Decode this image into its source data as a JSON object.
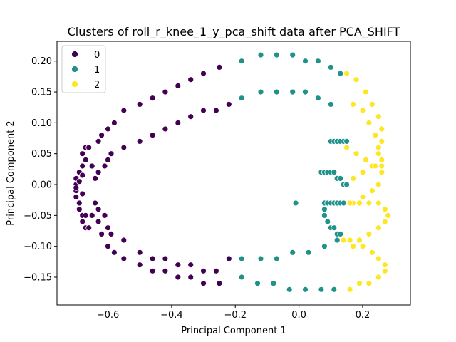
{
  "chart_data": {
    "type": "scatter",
    "title": "Clusters of roll_r_knee_1_y_pca_shift data after PCA_SHIFT",
    "xlabel": "Principal Component 1",
    "ylabel": "Principal Component 2",
    "xlim": [
      -0.76,
      0.35
    ],
    "ylim": [
      -0.195,
      0.232
    ],
    "xticks": [
      -0.6,
      -0.4,
      -0.2,
      0.0,
      0.2
    ],
    "xtick_labels": [
      "−0.6",
      "−0.4",
      "−0.2",
      "0.0",
      "0.2"
    ],
    "yticks": [
      -0.15,
      -0.1,
      -0.05,
      0.0,
      0.05,
      0.1,
      0.15,
      0.2
    ],
    "ytick_labels": [
      "−0.15",
      "−0.10",
      "−0.05",
      "0.00",
      "0.05",
      "0.10",
      "0.15",
      "0.20"
    ],
    "grid": false,
    "legend": {
      "placement": "top-left",
      "entries": [
        "0",
        "1",
        "2"
      ]
    },
    "colors": {
      "0": "#440154",
      "1": "#21918c",
      "2": "#fde725"
    },
    "series": [
      {
        "name": "0",
        "points": [
          [
            -0.7,
            -0.02
          ],
          [
            -0.7,
            0.0
          ],
          [
            -0.7,
            -0.01
          ],
          [
            -0.7,
            0.01
          ],
          [
            -0.69,
            0.02
          ],
          [
            -0.69,
            -0.03
          ],
          [
            -0.69,
            0.02
          ],
          [
            -0.69,
            -0.04
          ],
          [
            -0.68,
            0.03
          ],
          [
            -0.68,
            -0.05
          ],
          [
            -0.68,
            0.05
          ],
          [
            -0.68,
            -0.06
          ],
          [
            -0.67,
            0.06
          ],
          [
            -0.67,
            -0.07
          ],
          [
            -0.66,
            0.06
          ],
          [
            -0.66,
            -0.07
          ],
          [
            -0.65,
            0.03
          ],
          [
            -0.65,
            -0.05
          ],
          [
            -0.64,
            0.01
          ],
          [
            -0.64,
            -0.03
          ],
          [
            -0.67,
            -0.05
          ],
          [
            -0.67,
            0.04
          ],
          [
            -0.63,
            0.02
          ],
          [
            -0.63,
            -0.04
          ],
          [
            -0.61,
            0.03
          ],
          [
            -0.61,
            -0.05
          ],
          [
            -0.63,
            -0.06
          ],
          [
            -0.63,
            0.07
          ],
          [
            -0.62,
            -0.08
          ],
          [
            -0.62,
            0.08
          ],
          [
            -0.6,
            0.04
          ],
          [
            -0.6,
            -0.07
          ],
          [
            -0.59,
            0.05
          ],
          [
            -0.59,
            -0.08
          ],
          [
            -0.6,
            0.09
          ],
          [
            -0.6,
            -0.1
          ],
          [
            -0.58,
            0.1
          ],
          [
            -0.58,
            -0.11
          ],
          [
            -0.55,
            0.06
          ],
          [
            -0.55,
            -0.09
          ],
          [
            -0.55,
            0.12
          ],
          [
            -0.55,
            -0.12
          ],
          [
            -0.5,
            0.07
          ],
          [
            -0.5,
            -0.11
          ],
          [
            -0.5,
            0.13
          ],
          [
            -0.5,
            -0.13
          ],
          [
            -0.46,
            0.08
          ],
          [
            -0.46,
            -0.12
          ],
          [
            -0.46,
            0.14
          ],
          [
            -0.46,
            -0.14
          ],
          [
            -0.42,
            0.09
          ],
          [
            -0.42,
            -0.12
          ],
          [
            -0.42,
            0.15
          ],
          [
            -0.42,
            -0.14
          ],
          [
            -0.38,
            0.1
          ],
          [
            -0.38,
            -0.13
          ],
          [
            -0.38,
            0.16
          ],
          [
            -0.38,
            -0.15
          ],
          [
            -0.34,
            0.11
          ],
          [
            -0.34,
            -0.13
          ],
          [
            -0.34,
            0.17
          ],
          [
            -0.34,
            -0.15
          ],
          [
            -0.3,
            0.12
          ],
          [
            -0.3,
            -0.14
          ],
          [
            -0.3,
            0.18
          ],
          [
            -0.3,
            -0.16
          ],
          [
            -0.26,
            0.12
          ],
          [
            -0.26,
            -0.14
          ],
          [
            -0.25,
            0.19
          ],
          [
            -0.25,
            -0.16
          ],
          [
            -0.22,
            0.13
          ],
          [
            -0.22,
            -0.12
          ],
          [
            -0.7,
            -0.005
          ],
          [
            -0.69,
            0.005
          ],
          [
            -0.68,
            -0.015
          ],
          [
            -0.68,
            0.015
          ]
        ]
      },
      {
        "name": "1",
        "points": [
          [
            -0.18,
            0.2
          ],
          [
            -0.12,
            0.21
          ],
          [
            -0.07,
            0.21
          ],
          [
            -0.02,
            0.21
          ],
          [
            0.02,
            0.2
          ],
          [
            0.06,
            0.2
          ],
          [
            0.1,
            0.19
          ],
          [
            0.13,
            0.18
          ],
          [
            -0.18,
            0.14
          ],
          [
            -0.12,
            0.15
          ],
          [
            -0.07,
            0.15
          ],
          [
            -0.02,
            0.15
          ],
          [
            0.02,
            0.15
          ],
          [
            0.06,
            0.14
          ],
          [
            0.1,
            0.13
          ],
          [
            -0.18,
            -0.12
          ],
          [
            -0.12,
            -0.12
          ],
          [
            -0.07,
            -0.12
          ],
          [
            -0.02,
            -0.11
          ],
          [
            0.03,
            -0.11
          ],
          [
            0.08,
            -0.1
          ],
          [
            0.12,
            -0.09
          ],
          [
            -0.18,
            -0.15
          ],
          [
            -0.13,
            -0.16
          ],
          [
            -0.08,
            -0.16
          ],
          [
            -0.03,
            -0.17
          ],
          [
            0.02,
            -0.17
          ],
          [
            0.07,
            -0.17
          ],
          [
            0.11,
            -0.17
          ],
          [
            0.1,
            0.07
          ],
          [
            0.11,
            0.07
          ],
          [
            0.12,
            0.07
          ],
          [
            0.13,
            0.07
          ],
          [
            0.14,
            0.07
          ],
          [
            0.15,
            0.07
          ],
          [
            0.07,
            0.02
          ],
          [
            0.08,
            0.02
          ],
          [
            0.09,
            0.02
          ],
          [
            0.1,
            0.02
          ],
          [
            0.11,
            0.02
          ],
          [
            0.12,
            0.01
          ],
          [
            0.13,
            0.01
          ],
          [
            0.14,
            0.0
          ],
          [
            0.15,
            0.0
          ],
          [
            0.08,
            -0.03
          ],
          [
            0.09,
            -0.03
          ],
          [
            0.1,
            -0.03
          ],
          [
            0.11,
            -0.03
          ],
          [
            0.12,
            -0.03
          ],
          [
            0.13,
            -0.03
          ],
          [
            0.14,
            -0.03
          ],
          [
            0.08,
            -0.04
          ],
          [
            0.08,
            -0.05
          ],
          [
            0.09,
            -0.06
          ],
          [
            0.1,
            -0.07
          ],
          [
            0.11,
            -0.07
          ],
          [
            0.12,
            -0.08
          ],
          [
            0.13,
            -0.08
          ],
          [
            -0.01,
            -0.03
          ]
        ]
      },
      {
        "name": "2",
        "points": [
          [
            0.15,
            0.18
          ],
          [
            0.18,
            0.17
          ],
          [
            0.21,
            0.15
          ],
          [
            0.23,
            0.13
          ],
          [
            0.25,
            0.11
          ],
          [
            0.26,
            0.09
          ],
          [
            0.26,
            0.07
          ],
          [
            0.25,
            0.05
          ],
          [
            0.23,
            0.03
          ],
          [
            0.2,
            0.02
          ],
          [
            0.17,
            0.01
          ],
          [
            0.17,
            0.13
          ],
          [
            0.2,
            0.12
          ],
          [
            0.22,
            0.1
          ],
          [
            0.24,
            0.08
          ],
          [
            0.25,
            0.06
          ],
          [
            0.26,
            0.04
          ],
          [
            0.26,
            0.02
          ],
          [
            0.25,
            0.0
          ],
          [
            0.23,
            -0.01
          ],
          [
            0.2,
            -0.02
          ],
          [
            0.17,
            -0.03
          ],
          [
            0.16,
            -0.03
          ],
          [
            0.19,
            -0.03
          ],
          [
            0.22,
            -0.03
          ],
          [
            0.25,
            -0.03
          ],
          [
            0.27,
            -0.04
          ],
          [
            0.28,
            -0.05
          ],
          [
            0.27,
            -0.06
          ],
          [
            0.25,
            -0.07
          ],
          [
            0.22,
            -0.08
          ],
          [
            0.19,
            -0.09
          ],
          [
            0.16,
            -0.09
          ],
          [
            0.14,
            -0.09
          ],
          [
            0.17,
            -0.1
          ],
          [
            0.2,
            -0.1
          ],
          [
            0.23,
            -0.11
          ],
          [
            0.25,
            -0.12
          ],
          [
            0.27,
            -0.13
          ],
          [
            0.27,
            -0.14
          ],
          [
            0.25,
            -0.15
          ],
          [
            0.22,
            -0.16
          ],
          [
            0.19,
            -0.16
          ],
          [
            0.16,
            -0.17
          ],
          [
            0.15,
            0.06
          ],
          [
            0.18,
            0.05
          ],
          [
            0.21,
            0.04
          ],
          [
            0.24,
            0.03
          ],
          [
            0.26,
            0.03
          ]
        ]
      }
    ]
  }
}
